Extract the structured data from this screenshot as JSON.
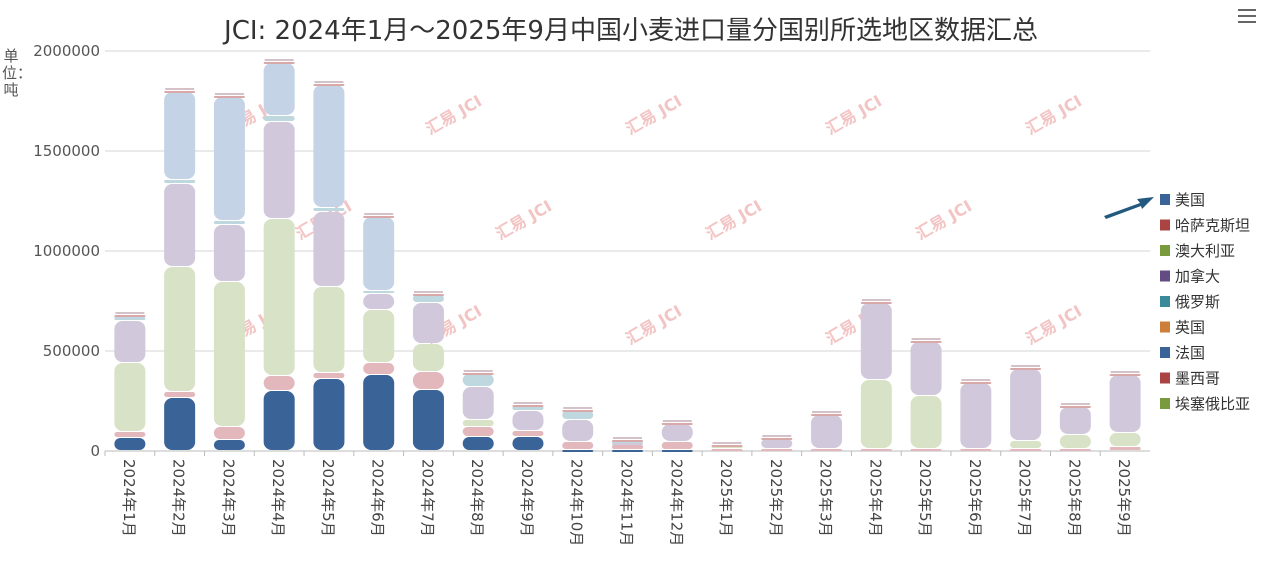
{
  "header": {
    "title": "JCI: 2024年1月～2025年9月中国小麦进口量分国别所选地区数据汇总"
  },
  "yaxis": {
    "unit_label": "单位：吨"
  },
  "toolbar": {
    "menu_icon": "hamburger-menu-icon"
  },
  "watermark": {
    "text": "汇易 JCI"
  },
  "chart_data": {
    "type": "bar",
    "stacked": true,
    "title": "JCI: 2024年1月～2025年9月中国小麦进口量分国别所选地区数据汇总",
    "ylabel": "单位：吨",
    "ylim": [
      0,
      2000000
    ],
    "yticks": [
      "0",
      "500000",
      "1000000",
      "1500000",
      "2000000"
    ],
    "grid": true,
    "legend_position": "right",
    "categories": [
      "2024年1月",
      "2024年2月",
      "2024年3月",
      "2024年4月",
      "2024年5月",
      "2024年6月",
      "2024年7月",
      "2024年8月",
      "2024年9月",
      "2024年10月",
      "2024年11月",
      "2024年12月",
      "2025年1月",
      "2025年2月",
      "2025年3月",
      "2025年4月",
      "2025年5月",
      "2025年6月",
      "2025年7月",
      "2025年8月",
      "2025年9月"
    ],
    "series": [
      {
        "name": "美国",
        "color": "#3a6398",
        "values": [
          65000,
          265000,
          55000,
          300000,
          360000,
          380000,
          305000,
          70000,
          70000,
          5000,
          5000,
          5000,
          0,
          0,
          0,
          0,
          0,
          0,
          0,
          0,
          0
        ]
      },
      {
        "name": "哈萨克斯坦",
        "color": "#e2b8bd",
        "values": [
          30000,
          30000,
          65000,
          75000,
          30000,
          60000,
          90000,
          50000,
          30000,
          40000,
          25000,
          40000,
          10000,
          10000,
          10000,
          10000,
          10000,
          10000,
          10000,
          10000,
          20000
        ]
      },
      {
        "name": "澳大利亚",
        "color": "#d8e2c7",
        "values": [
          345000,
          625000,
          725000,
          785000,
          430000,
          265000,
          140000,
          35000,
          0,
          0,
          0,
          0,
          15000,
          0,
          0,
          345000,
          265000,
          0,
          40000,
          70000,
          70000
        ]
      },
      {
        "name": "加拿大",
        "color": "#d1c9db",
        "values": [
          210000,
          415000,
          285000,
          485000,
          375000,
          80000,
          205000,
          165000,
          100000,
          110000,
          10000,
          90000,
          0,
          50000,
          170000,
          385000,
          270000,
          330000,
          360000,
          140000,
          290000
        ]
      },
      {
        "name": "俄罗斯",
        "color": "#bfd7df",
        "values": [
          15000,
          20000,
          20000,
          30000,
          20000,
          15000,
          40000,
          65000,
          25000,
          45000,
          10000,
          0,
          0,
          0,
          0,
          0,
          0,
          0,
          0,
          0,
          0
        ]
      },
      {
        "name": "英国",
        "color": "#e8c6a8",
        "values": [
          0,
          0,
          0,
          0,
          0,
          0,
          0,
          0,
          0,
          0,
          0,
          0,
          0,
          0,
          0,
          0,
          0,
          0,
          0,
          0,
          0
        ]
      },
      {
        "name": "法国",
        "color": "#c4d3e6",
        "values": [
          10000,
          440000,
          620000,
          265000,
          615000,
          370000,
          0,
          0,
          0,
          0,
          0,
          0,
          0,
          0,
          0,
          0,
          0,
          0,
          0,
          0,
          0
        ]
      },
      {
        "name": "墨西哥",
        "color": "#d9a9a9",
        "values": [
          5000,
          5000,
          5000,
          5000,
          5000,
          5000,
          5000,
          5000,
          5000,
          5000,
          5000,
          5000,
          5000,
          5000,
          5000,
          5000,
          5000,
          5000,
          5000,
          5000,
          5000
        ]
      },
      {
        "name": "埃塞俄比亚",
        "color": "#8aa55a",
        "values": [
          0,
          0,
          0,
          0,
          0,
          0,
          0,
          0,
          0,
          0,
          0,
          0,
          0,
          0,
          0,
          0,
          0,
          0,
          0,
          0,
          0
        ]
      }
    ],
    "legend": [
      {
        "name": "美国",
        "color": "#3a6398"
      },
      {
        "name": "哈萨克斯坦",
        "color": "#a94442"
      },
      {
        "name": "澳大利亚",
        "color": "#7a9a3f"
      },
      {
        "name": "加拿大",
        "color": "#634c84"
      },
      {
        "name": "俄罗斯",
        "color": "#3a8a9c"
      },
      {
        "name": "英国",
        "color": "#cd7f3a"
      },
      {
        "name": "法国",
        "color": "#3a6398"
      },
      {
        "name": "墨西哥",
        "color": "#a94442"
      },
      {
        "name": "埃塞俄比亚",
        "color": "#7a9a3f"
      }
    ]
  }
}
